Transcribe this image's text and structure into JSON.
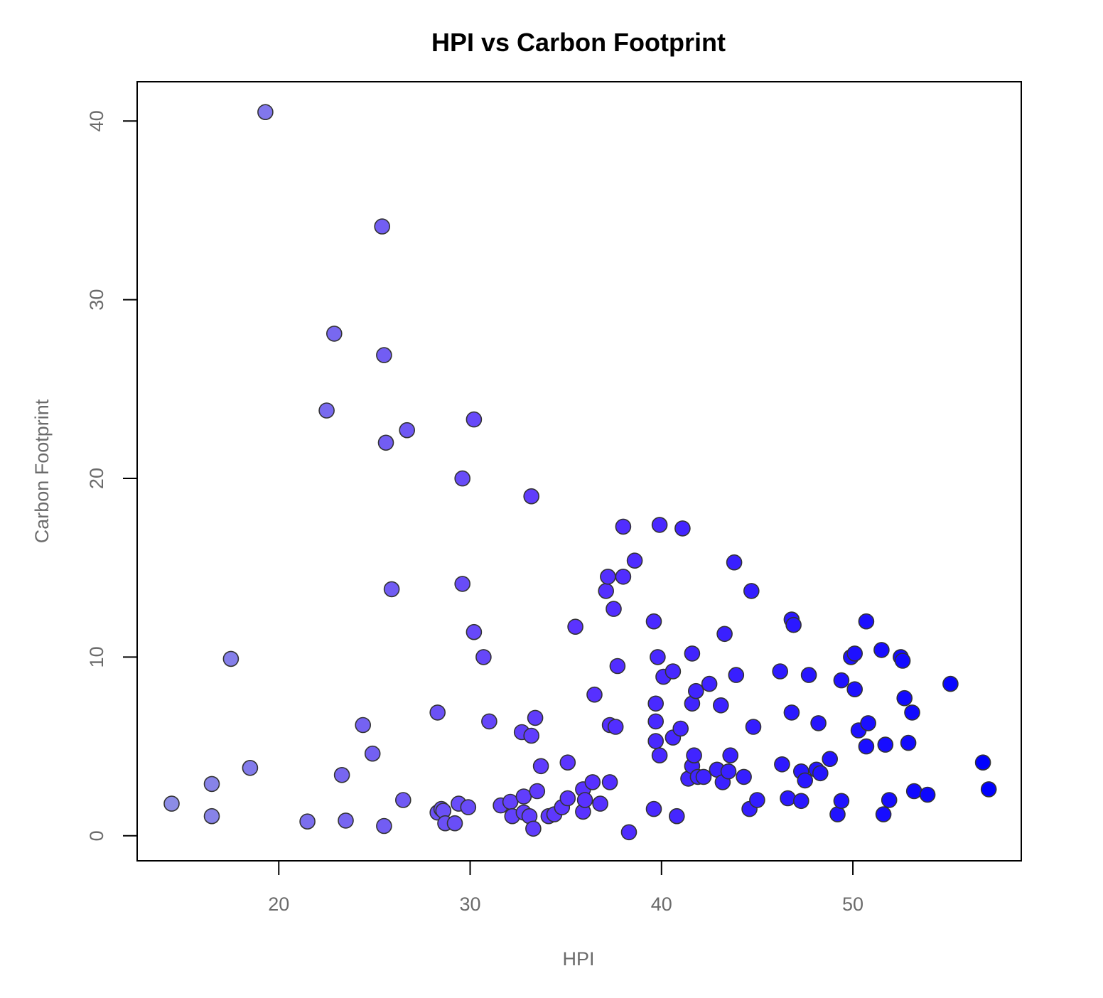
{
  "chart_data": {
    "type": "scatter",
    "title": "HPI vs Carbon Footprint",
    "xlabel": "HPI",
    "ylabel": "Carbon Footprint",
    "xlim": [
      12.6,
      58.8
    ],
    "ylim": [
      -1.4,
      42.2
    ],
    "xticks": [
      20,
      30,
      40,
      50
    ],
    "yticks": [
      0,
      10,
      20,
      30,
      40
    ],
    "grid": false,
    "legend": "none",
    "color_scale": {
      "low": "#8C8CE6",
      "mid": "#5A32FF",
      "high": "#0000FF",
      "by": "x"
    },
    "points": [
      [
        14.4,
        1.8
      ],
      [
        16.5,
        2.9
      ],
      [
        16.5,
        1.1
      ],
      [
        17.5,
        9.9
      ],
      [
        18.5,
        3.8
      ],
      [
        19.3,
        40.5
      ],
      [
        21.5,
        0.8
      ],
      [
        22.5,
        23.8
      ],
      [
        22.9,
        28.1
      ],
      [
        23.3,
        3.4
      ],
      [
        23.5,
        0.85
      ],
      [
        24.4,
        6.2
      ],
      [
        24.9,
        4.6
      ],
      [
        25.4,
        34.1
      ],
      [
        25.5,
        26.9
      ],
      [
        25.5,
        0.55
      ],
      [
        25.6,
        22.0
      ],
      [
        25.9,
        13.8
      ],
      [
        26.5,
        2.0
      ],
      [
        26.7,
        22.7
      ],
      [
        28.3,
        6.9
      ],
      [
        28.3,
        1.3
      ],
      [
        28.5,
        1.5
      ],
      [
        28.6,
        1.4
      ],
      [
        28.7,
        0.7
      ],
      [
        29.2,
        0.7
      ],
      [
        29.4,
        1.8
      ],
      [
        29.6,
        20.0
      ],
      [
        29.6,
        14.1
      ],
      [
        29.9,
        1.6
      ],
      [
        30.2,
        23.3
      ],
      [
        30.2,
        11.4
      ],
      [
        30.7,
        10.0
      ],
      [
        31.0,
        6.4
      ],
      [
        31.6,
        1.7
      ],
      [
        32.1,
        1.9
      ],
      [
        32.2,
        1.1
      ],
      [
        32.7,
        5.8
      ],
      [
        32.8,
        1.3
      ],
      [
        32.8,
        2.2
      ],
      [
        33.1,
        1.1
      ],
      [
        33.2,
        19.0
      ],
      [
        33.2,
        5.6
      ],
      [
        33.3,
        0.4
      ],
      [
        33.4,
        6.6
      ],
      [
        33.5,
        2.5
      ],
      [
        33.7,
        3.9
      ],
      [
        34.1,
        1.1
      ],
      [
        34.4,
        1.2
      ],
      [
        34.8,
        1.6
      ],
      [
        35.1,
        4.1
      ],
      [
        35.1,
        2.1
      ],
      [
        35.5,
        11.7
      ],
      [
        35.9,
        1.35
      ],
      [
        35.9,
        2.6
      ],
      [
        36.0,
        2.0
      ],
      [
        36.4,
        3.0
      ],
      [
        36.5,
        7.9
      ],
      [
        36.8,
        1.8
      ],
      [
        37.1,
        13.7
      ],
      [
        37.2,
        14.5
      ],
      [
        37.3,
        6.2
      ],
      [
        37.3,
        3.0
      ],
      [
        37.5,
        12.7
      ],
      [
        37.6,
        6.1
      ],
      [
        37.7,
        9.5
      ],
      [
        38.0,
        17.3
      ],
      [
        38.0,
        14.5
      ],
      [
        38.3,
        0.2
      ],
      [
        38.6,
        15.4
      ],
      [
        39.6,
        12.0
      ],
      [
        39.6,
        1.5
      ],
      [
        39.7,
        7.4
      ],
      [
        39.7,
        6.4
      ],
      [
        39.7,
        5.3
      ],
      [
        39.8,
        10.0
      ],
      [
        39.9,
        17.4
      ],
      [
        39.9,
        4.5
      ],
      [
        40.1,
        8.9
      ],
      [
        40.6,
        9.2
      ],
      [
        40.6,
        5.5
      ],
      [
        40.8,
        1.1
      ],
      [
        41.0,
        6.0
      ],
      [
        41.1,
        17.2
      ],
      [
        41.4,
        3.2
      ],
      [
        41.6,
        10.2
      ],
      [
        41.6,
        7.4
      ],
      [
        41.6,
        3.9
      ],
      [
        41.7,
        4.5
      ],
      [
        41.8,
        8.1
      ],
      [
        41.9,
        3.3
      ],
      [
        42.2,
        3.3
      ],
      [
        42.5,
        8.5
      ],
      [
        42.9,
        3.7
      ],
      [
        43.1,
        7.3
      ],
      [
        43.2,
        3.0
      ],
      [
        43.3,
        11.3
      ],
      [
        43.5,
        3.6
      ],
      [
        43.6,
        4.5
      ],
      [
        43.8,
        15.3
      ],
      [
        43.9,
        9.0
      ],
      [
        44.3,
        3.3
      ],
      [
        44.6,
        1.5
      ],
      [
        44.7,
        13.7
      ],
      [
        44.8,
        6.1
      ],
      [
        45.0,
        2.0
      ],
      [
        46.2,
        9.2
      ],
      [
        46.3,
        4.0
      ],
      [
        46.6,
        2.1
      ],
      [
        46.8,
        6.9
      ],
      [
        46.8,
        12.1
      ],
      [
        46.9,
        11.8
      ],
      [
        47.3,
        3.6
      ],
      [
        47.3,
        1.95
      ],
      [
        47.5,
        3.1
      ],
      [
        47.7,
        9.0
      ],
      [
        48.1,
        3.7
      ],
      [
        48.2,
        6.3
      ],
      [
        48.3,
        3.5
      ],
      [
        48.8,
        4.3
      ],
      [
        49.2,
        1.2
      ],
      [
        49.4,
        8.7
      ],
      [
        49.4,
        1.95
      ],
      [
        49.9,
        10.0
      ],
      [
        50.1,
        10.2
      ],
      [
        50.1,
        8.2
      ],
      [
        50.3,
        5.9
      ],
      [
        50.7,
        12.0
      ],
      [
        50.7,
        5.0
      ],
      [
        50.8,
        6.3
      ],
      [
        51.5,
        10.4
      ],
      [
        51.6,
        1.2
      ],
      [
        51.7,
        5.1
      ],
      [
        51.9,
        2.0
      ],
      [
        52.5,
        10.0
      ],
      [
        52.6,
        9.8
      ],
      [
        52.7,
        7.7
      ],
      [
        52.9,
        5.2
      ],
      [
        53.1,
        6.9
      ],
      [
        53.2,
        2.5
      ],
      [
        53.9,
        2.3
      ],
      [
        55.1,
        8.5
      ],
      [
        56.8,
        4.1
      ],
      [
        57.1,
        2.6
      ]
    ]
  }
}
